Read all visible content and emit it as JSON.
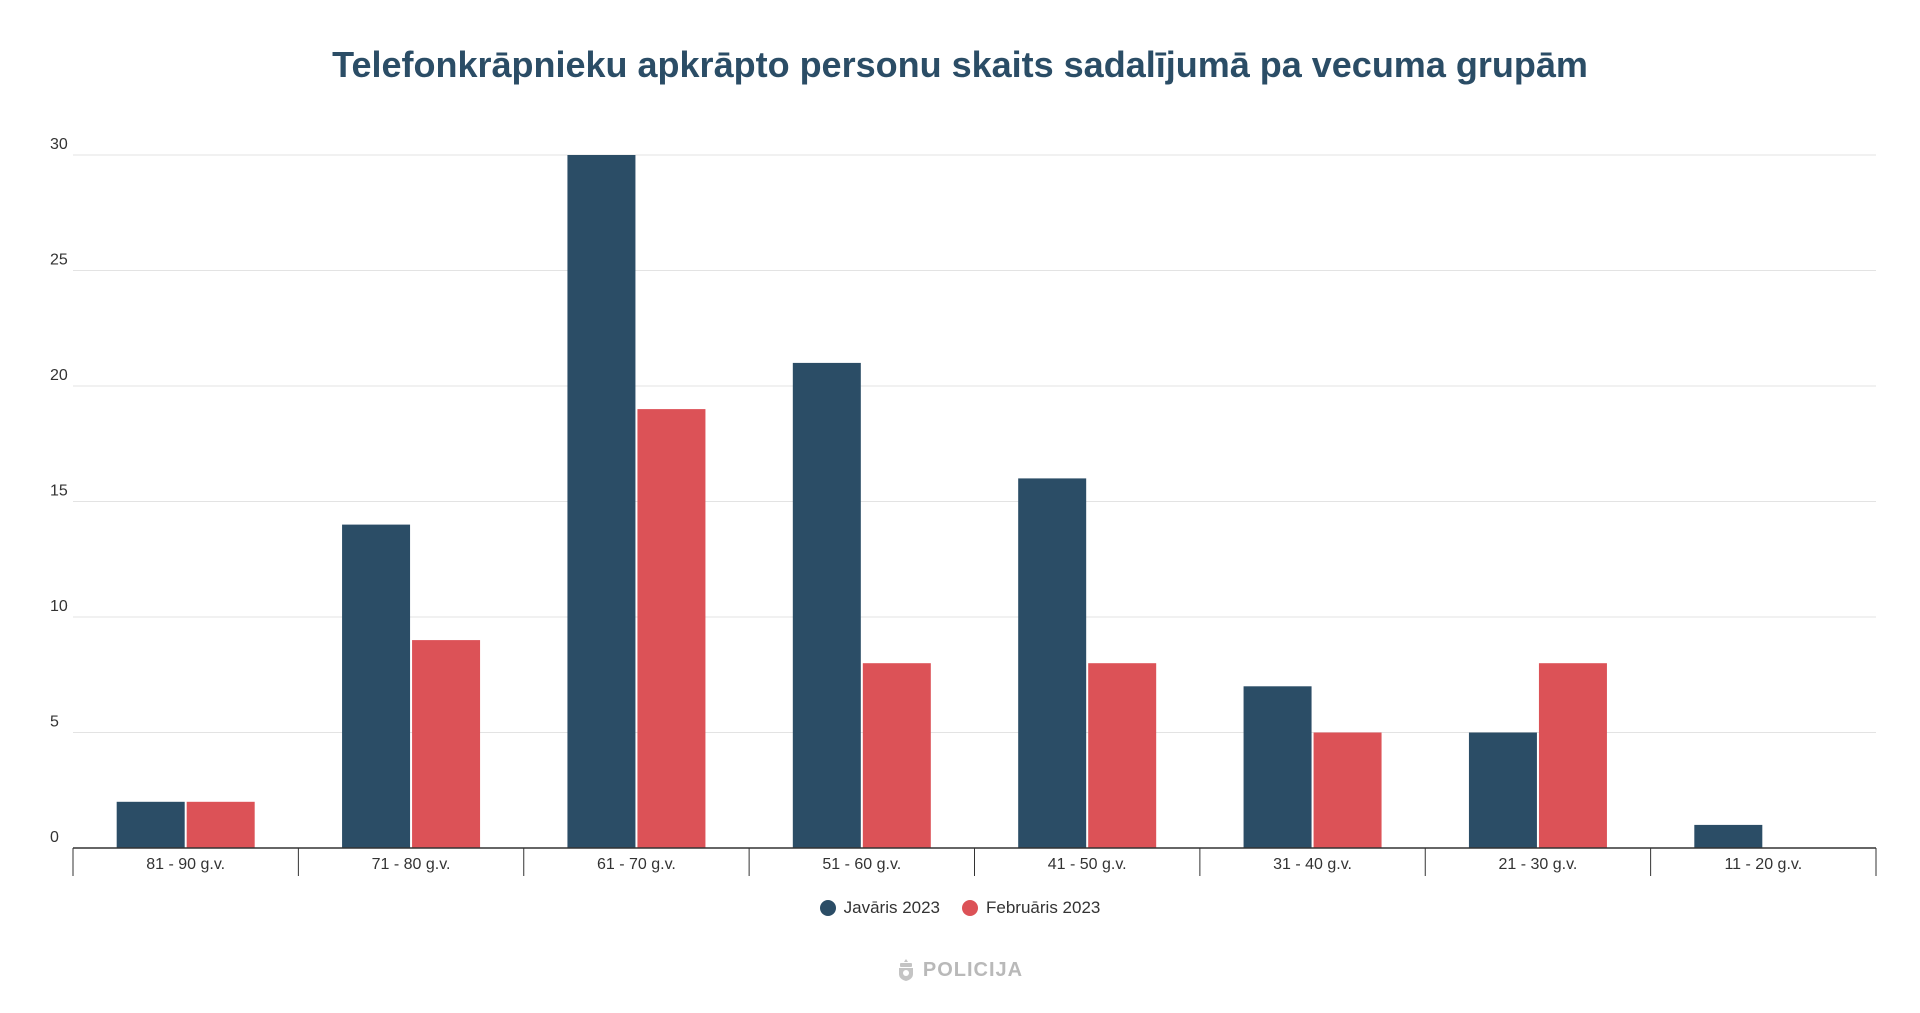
{
  "chart_data": {
    "type": "bar",
    "title": "Telefonkrāpnieku apkrāpto personu skaits sadalījumā pa vecuma grupām",
    "categories": [
      "81 - 90 g.v.",
      "71 - 80 g.v.",
      "61 - 70 g.v.",
      "51 - 60 g.v.",
      "41 - 50 g.v.",
      "31 - 40 g.v.",
      "21 - 30 g.v.",
      "11 - 20 g.v."
    ],
    "series": [
      {
        "name": "Javāris 2023",
        "color": "#2b4d66",
        "values": [
          2,
          14,
          30,
          21,
          16,
          7,
          5,
          1
        ]
      },
      {
        "name": "Februāris 2023",
        "color": "#dc5257",
        "values": [
          2,
          9,
          19,
          8,
          8,
          5,
          8,
          0
        ]
      }
    ],
    "ylim": [
      0,
      30
    ],
    "yticks": [
      0,
      5,
      10,
      15,
      20,
      25,
      30
    ],
    "xlabel": "",
    "ylabel": "",
    "grid": true,
    "legend_position": "bottom"
  },
  "brand": {
    "name": "POLICIJA",
    "icon": "police-emblem-icon"
  }
}
